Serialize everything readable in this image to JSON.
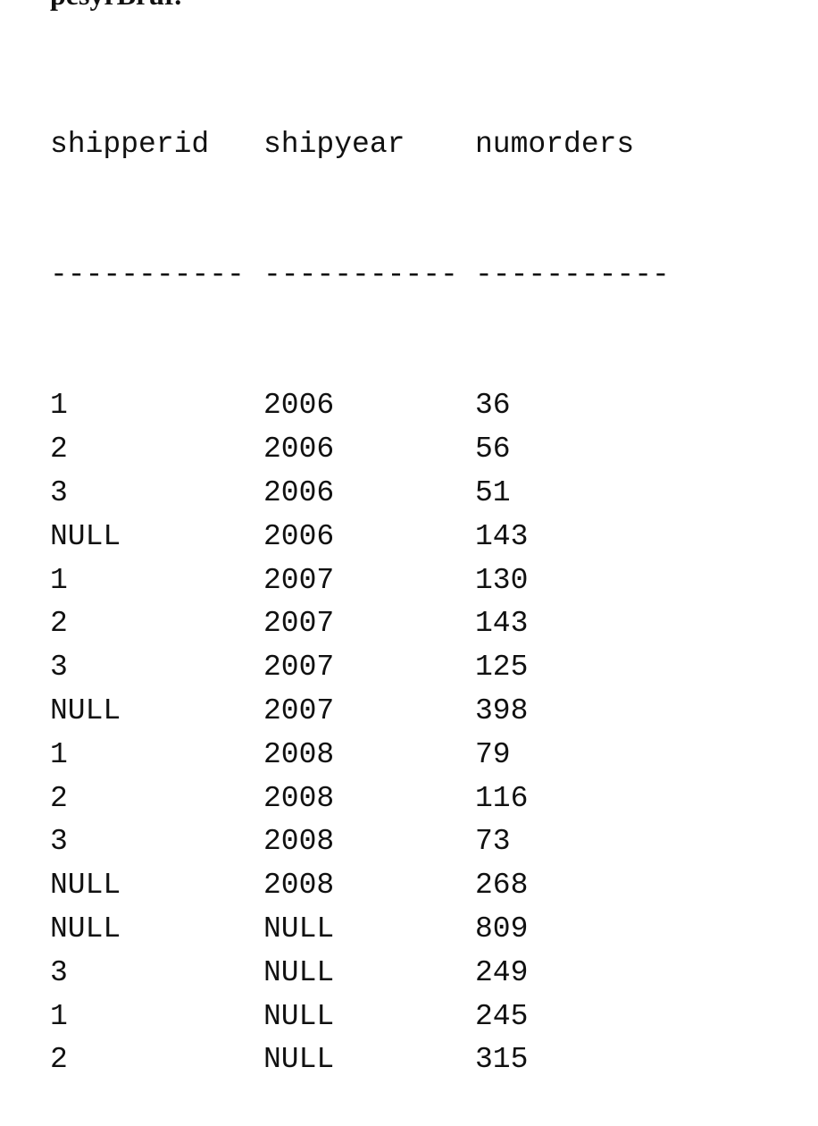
{
  "heading": "pesyrBrur.",
  "result": {
    "columns": [
      "shipperid",
      "shipyear",
      "numorders"
    ],
    "separator": [
      "-----------",
      "-----------",
      "-----------"
    ],
    "rows": [
      [
        "1",
        "2006",
        "36"
      ],
      [
        "2",
        "2006",
        "56"
      ],
      [
        "3",
        "2006",
        "51"
      ],
      [
        "NULL",
        "2006",
        "143"
      ],
      [
        "1",
        "2007",
        "130"
      ],
      [
        "2",
        "2007",
        "143"
      ],
      [
        "3",
        "2007",
        "125"
      ],
      [
        "NULL",
        "2007",
        "398"
      ],
      [
        "1",
        "2008",
        "79"
      ],
      [
        "2",
        "2008",
        "116"
      ],
      [
        "3",
        "2008",
        "73"
      ],
      [
        "NULL",
        "2008",
        "268"
      ],
      [
        "NULL",
        "NULL",
        "809"
      ],
      [
        "3",
        "NULL",
        "249"
      ],
      [
        "1",
        "NULL",
        "245"
      ],
      [
        "2",
        "NULL",
        "315"
      ]
    ]
  }
}
